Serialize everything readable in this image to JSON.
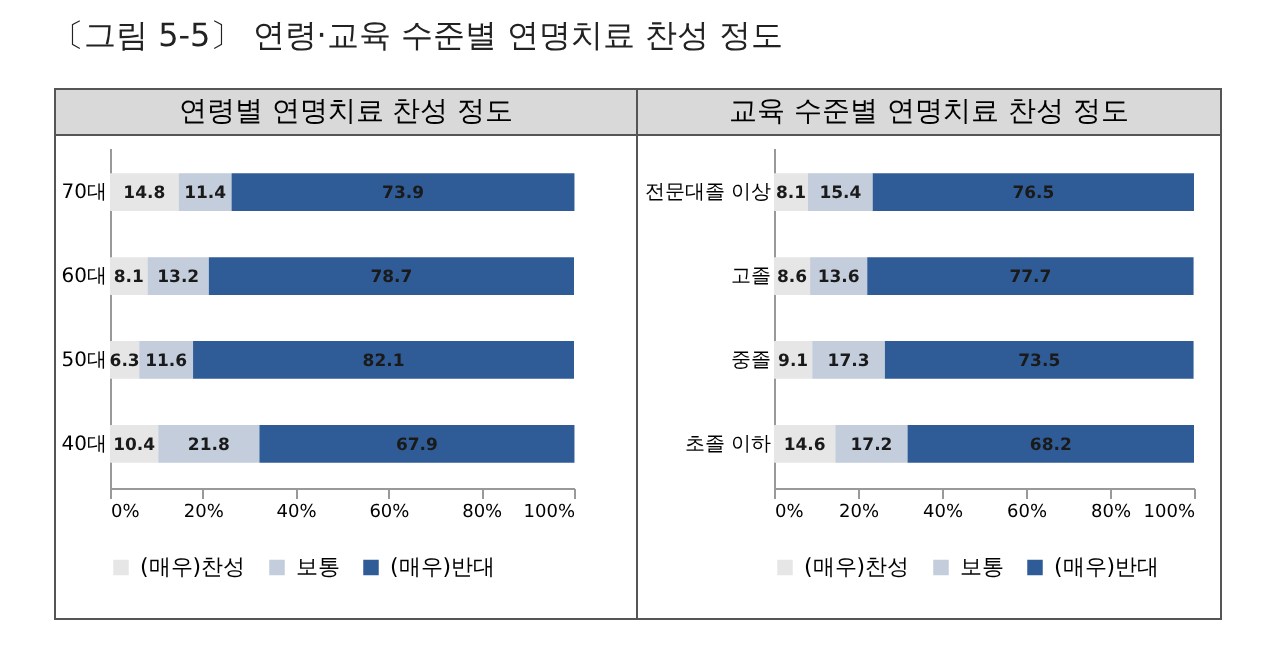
{
  "chart_data": [
    {
      "type": "bar",
      "orientation": "horizontal",
      "stacked": true,
      "title": "연령별 연명치료 찬성 정도",
      "annotations": [
        "〔그림 5-5〕 연령·교육 수준별 연명치료 찬성 정도"
      ],
      "categories": [
        "70대",
        "60대",
        "50대",
        "40대"
      ],
      "series": [
        {
          "name": "(매우)찬성",
          "color": "#e6e6e6",
          "values": [
            14.8,
            8.1,
            6.3,
            10.4
          ]
        },
        {
          "name": "보통",
          "color": "#c3cddb",
          "values": [
            11.4,
            13.2,
            11.6,
            21.8
          ]
        },
        {
          "name": "(매우)반대",
          "color": "#2f5c97",
          "values": [
            73.9,
            78.7,
            82.1,
            67.9
          ]
        }
      ],
      "xlim": [
        0,
        100
      ],
      "xticks": [
        {
          "value": 0,
          "label": "0%"
        },
        {
          "value": 20,
          "label": "20%"
        },
        {
          "value": 40,
          "label": "40%"
        },
        {
          "value": 60,
          "label": "60%"
        },
        {
          "value": 80,
          "label": "80%"
        },
        {
          "value": 100,
          "label": "100%"
        }
      ],
      "data_labels": true,
      "legend": "bottom",
      "grid": false
    },
    {
      "type": "bar",
      "orientation": "horizontal",
      "stacked": true,
      "title": "교육 수준별 연명치료 찬성 정도",
      "categories": [
        "전문대졸 이상",
        "고졸",
        "중졸",
        "초졸 이하"
      ],
      "series": [
        {
          "name": "(매우)찬성",
          "color": "#e6e6e6",
          "values": [
            8.1,
            8.6,
            9.1,
            14.6
          ]
        },
        {
          "name": "보통",
          "color": "#c3cddb",
          "values": [
            15.4,
            13.6,
            17.3,
            17.2
          ]
        },
        {
          "name": "(매우)반대",
          "color": "#2f5c97",
          "values": [
            76.5,
            77.7,
            73.5,
            68.2
          ]
        }
      ],
      "xlim": [
        0,
        100
      ],
      "xticks": [
        {
          "value": 0,
          "label": "0%"
        },
        {
          "value": 20,
          "label": "20%"
        },
        {
          "value": 40,
          "label": "40%"
        },
        {
          "value": 60,
          "label": "60%"
        },
        {
          "value": 80,
          "label": "80%"
        },
        {
          "value": 100,
          "label": "100%"
        }
      ],
      "data_labels": true,
      "legend": "bottom",
      "grid": false
    }
  ]
}
